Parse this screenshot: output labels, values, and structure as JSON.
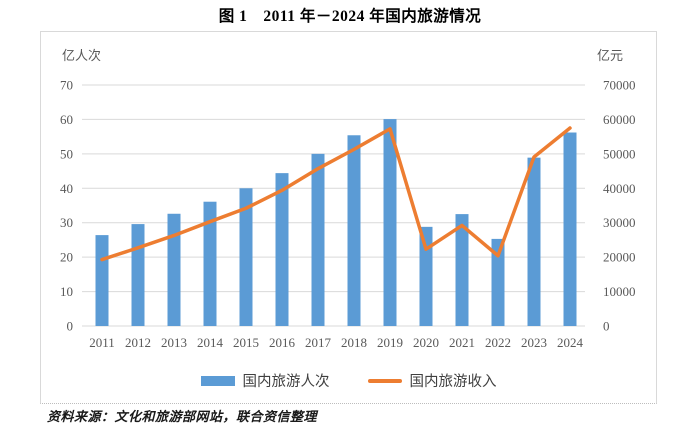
{
  "title": "图 1　2011 年－2024 年国内旅游情况",
  "chart": {
    "left_unit": "亿人次",
    "right_unit": "亿元"
  },
  "legend": {
    "bars": "国内旅游人次",
    "line": "国内旅游收入"
  },
  "source": "资料来源：文化和旅游部网站，联合资信整理",
  "colors": {
    "bar": "#5b9bd5",
    "line": "#ed7d31",
    "grid": "#d9d9d9",
    "axis_text": "#595959"
  },
  "chart_data": {
    "type": "bar",
    "subtype": "bar+line combo, dual y-axes",
    "title": "图 1　2011 年－2024 年国内旅游情况",
    "categories": [
      "2011",
      "2012",
      "2013",
      "2014",
      "2015",
      "2016",
      "2017",
      "2018",
      "2019",
      "2020",
      "2021",
      "2022",
      "2023",
      "2024"
    ],
    "series": [
      {
        "name": "国内旅游人次",
        "type": "bar",
        "axis": "left",
        "unit": "亿人次",
        "values": [
          26.4,
          29.6,
          32.6,
          36.1,
          40.0,
          44.4,
          50.0,
          55.4,
          60.1,
          28.8,
          32.5,
          25.3,
          48.9,
          56.2
        ]
      },
      {
        "name": "国内旅游收入",
        "type": "line",
        "axis": "right",
        "unit": "亿元",
        "values": [
          19300,
          22700,
          26300,
          30300,
          34200,
          39400,
          45700,
          51300,
          57250,
          22300,
          29200,
          20400,
          49100,
          57500
        ]
      }
    ],
    "y_left": {
      "label": "亿人次",
      "min": 0,
      "max": 70,
      "ticks": [
        0,
        10,
        20,
        30,
        40,
        50,
        60,
        70
      ]
    },
    "y_right": {
      "label": "亿元",
      "min": 0,
      "max": 70000,
      "ticks": [
        0,
        10000,
        20000,
        30000,
        40000,
        50000,
        60000,
        70000
      ]
    },
    "grid": true,
    "legend_position": "bottom"
  }
}
